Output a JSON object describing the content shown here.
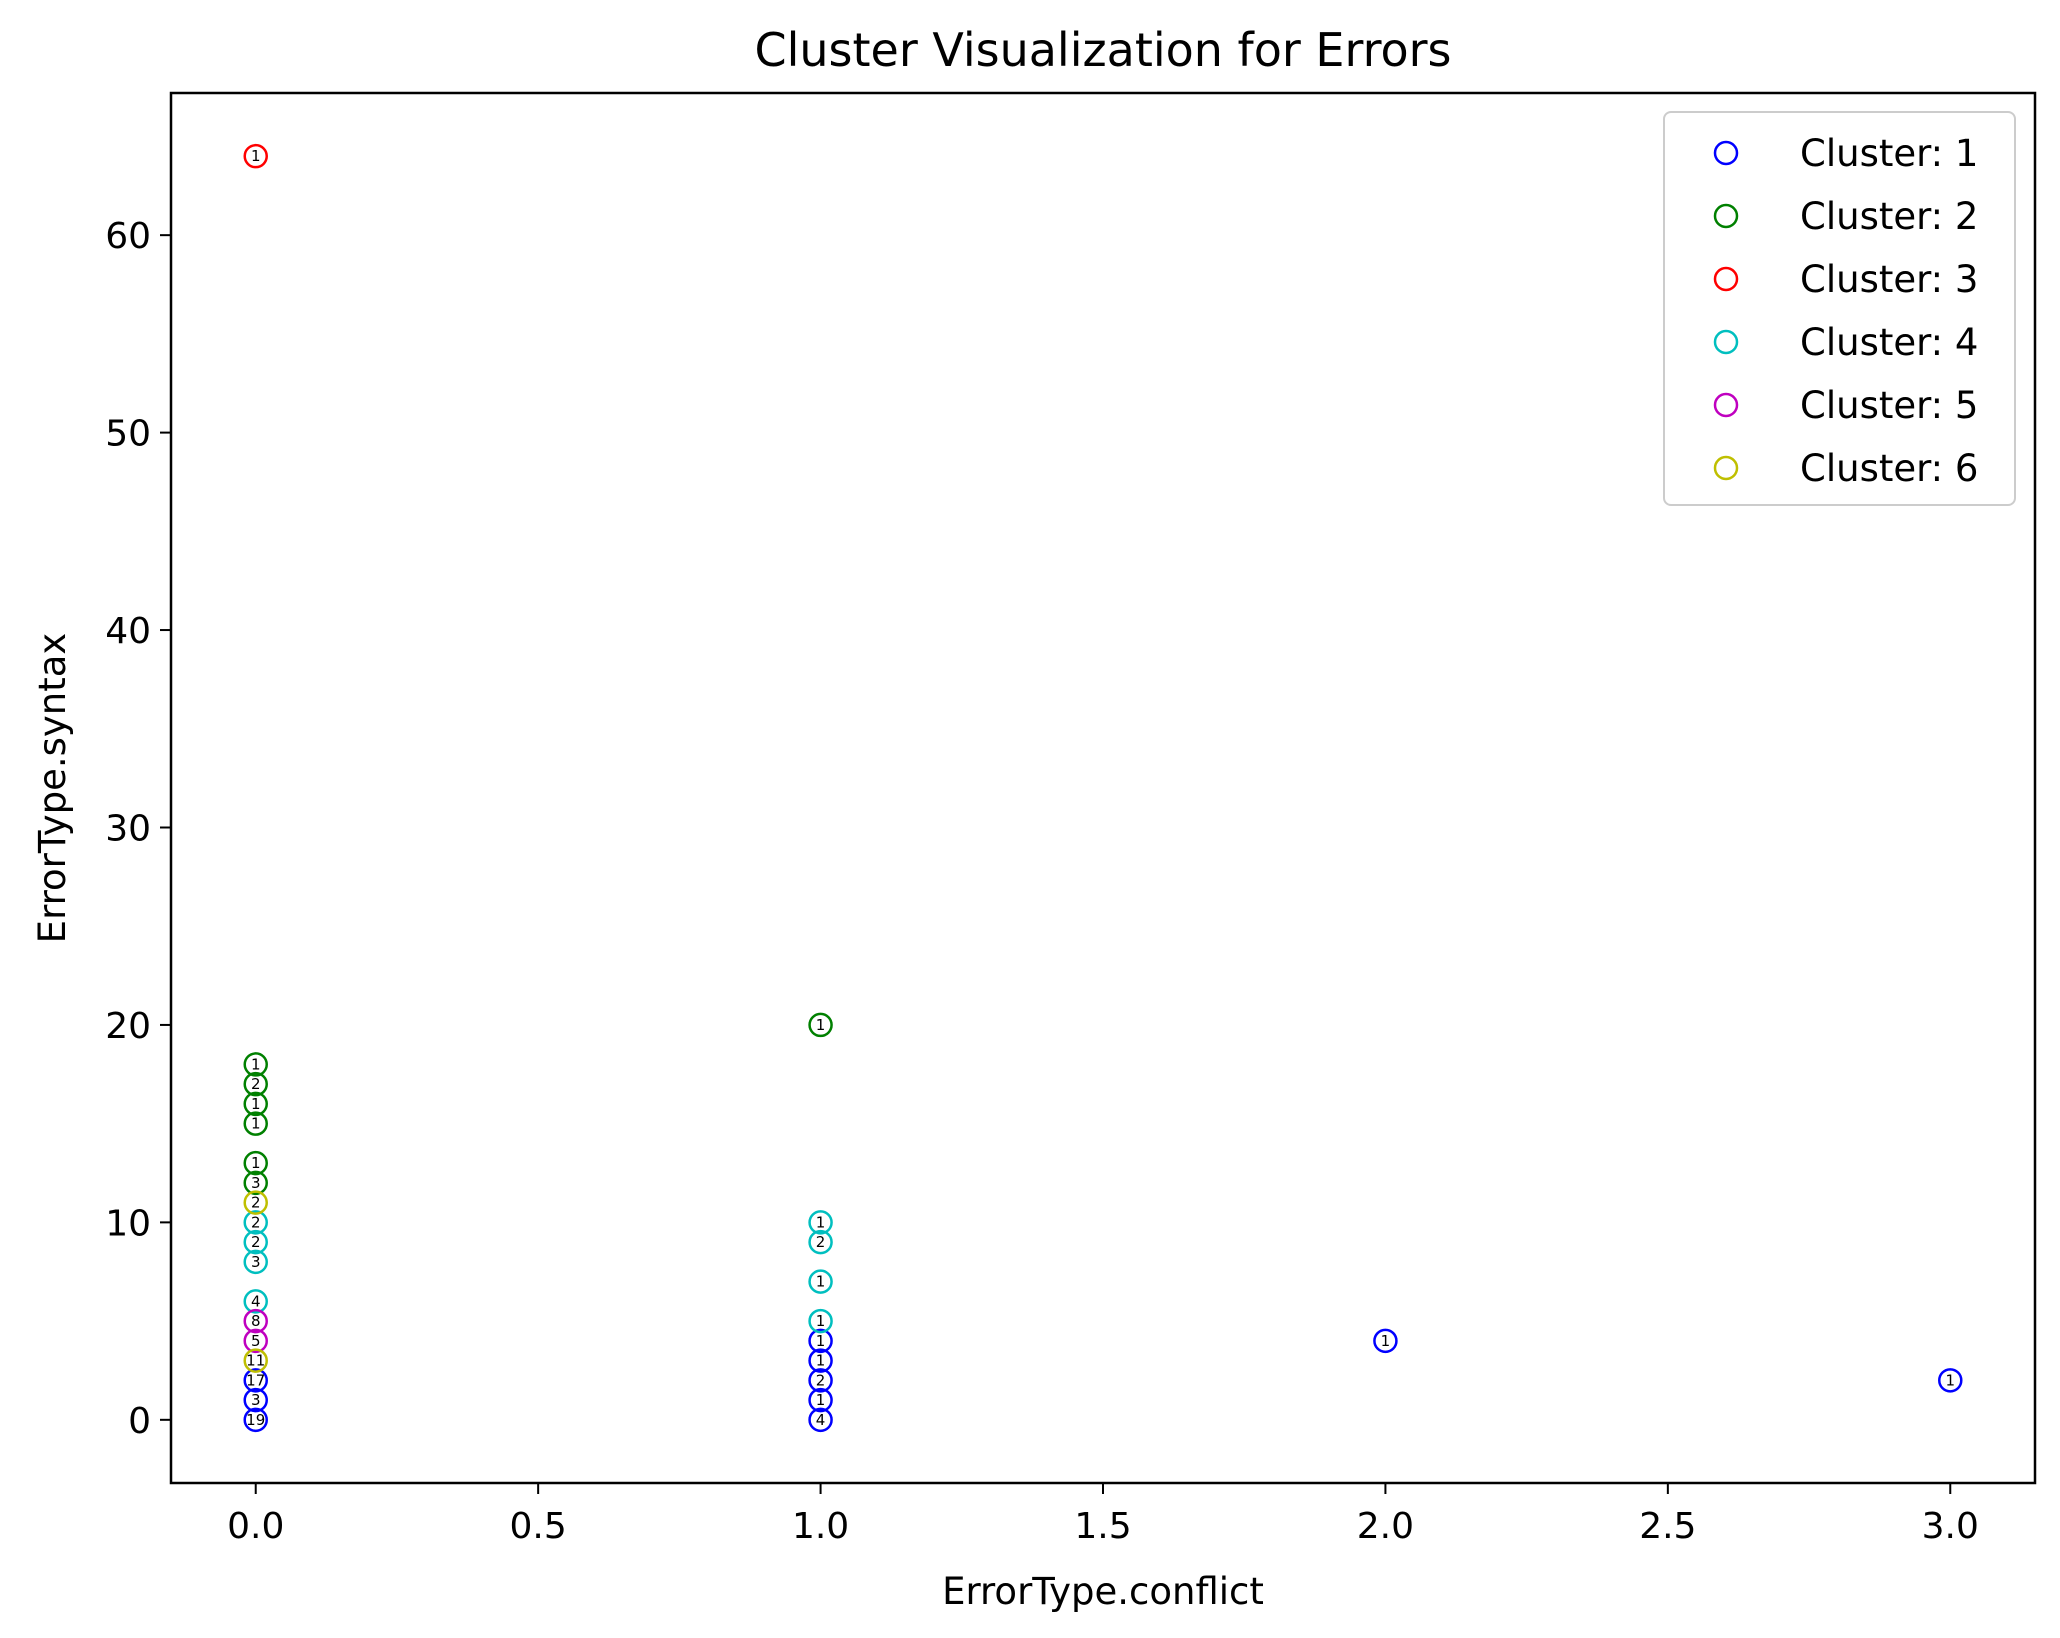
{
  "chart_data": {
    "type": "scatter",
    "title": "Cluster Visualization for Errors",
    "xlabel": "ErrorType.conflict",
    "ylabel": "ErrorType.syntax",
    "xlim": [
      -0.15,
      3.15
    ],
    "ylim": [
      -3.2,
      67.2
    ],
    "xticks": [
      "0.0",
      "0.5",
      "1.0",
      "1.5",
      "2.0",
      "2.5",
      "3.0"
    ],
    "xtick_values": [
      0,
      0.5,
      1,
      1.5,
      2,
      2.5,
      3
    ],
    "yticks": [
      "0",
      "10",
      "20",
      "30",
      "40",
      "50",
      "60"
    ],
    "ytick_values": [
      0,
      10,
      20,
      30,
      40,
      50,
      60
    ],
    "grid": false,
    "legend_position": "top-right",
    "marker": "hollow-circle",
    "series": [
      {
        "name": "Cluster: 1",
        "color": "#0000ff",
        "points": [
          {
            "x": 0,
            "y": 0,
            "label": "19"
          },
          {
            "x": 0,
            "y": 1,
            "label": "3"
          },
          {
            "x": 0,
            "y": 2,
            "label": "17"
          },
          {
            "x": 1,
            "y": 0,
            "label": "4"
          },
          {
            "x": 1,
            "y": 1,
            "label": "1"
          },
          {
            "x": 1,
            "y": 2,
            "label": "2"
          },
          {
            "x": 1,
            "y": 3,
            "label": "1"
          },
          {
            "x": 1,
            "y": 4,
            "label": "1"
          },
          {
            "x": 2,
            "y": 4,
            "label": "1"
          },
          {
            "x": 3,
            "y": 2,
            "label": "1"
          }
        ]
      },
      {
        "name": "Cluster: 2",
        "color": "#008000",
        "points": [
          {
            "x": 0,
            "y": 12,
            "label": "3"
          },
          {
            "x": 0,
            "y": 13,
            "label": "1"
          },
          {
            "x": 0,
            "y": 15,
            "label": "1"
          },
          {
            "x": 0,
            "y": 16,
            "label": "1"
          },
          {
            "x": 0,
            "y": 17,
            "label": "2"
          },
          {
            "x": 0,
            "y": 18,
            "label": "1"
          },
          {
            "x": 1,
            "y": 20,
            "label": "1"
          }
        ]
      },
      {
        "name": "Cluster: 3",
        "color": "#ff0000",
        "points": [
          {
            "x": 0,
            "y": 64,
            "label": "1"
          }
        ]
      },
      {
        "name": "Cluster: 4",
        "color": "#00bfbf",
        "points": [
          {
            "x": 0,
            "y": 6,
            "label": "4"
          },
          {
            "x": 0,
            "y": 8,
            "label": "3"
          },
          {
            "x": 0,
            "y": 9,
            "label": "2"
          },
          {
            "x": 0,
            "y": 10,
            "label": "2"
          },
          {
            "x": 1,
            "y": 5,
            "label": "1"
          },
          {
            "x": 1,
            "y": 7,
            "label": "1"
          },
          {
            "x": 1,
            "y": 9,
            "label": "2"
          },
          {
            "x": 1,
            "y": 10,
            "label": "1"
          }
        ]
      },
      {
        "name": "Cluster: 5",
        "color": "#bf00bf",
        "points": [
          {
            "x": 0,
            "y": 4,
            "label": "5"
          },
          {
            "x": 0,
            "y": 5,
            "label": "8"
          }
        ]
      },
      {
        "name": "Cluster: 6",
        "color": "#bfbf00",
        "points": [
          {
            "x": 0,
            "y": 3,
            "label": "11"
          },
          {
            "x": 0,
            "y": 11,
            "label": "2"
          }
        ]
      }
    ]
  }
}
